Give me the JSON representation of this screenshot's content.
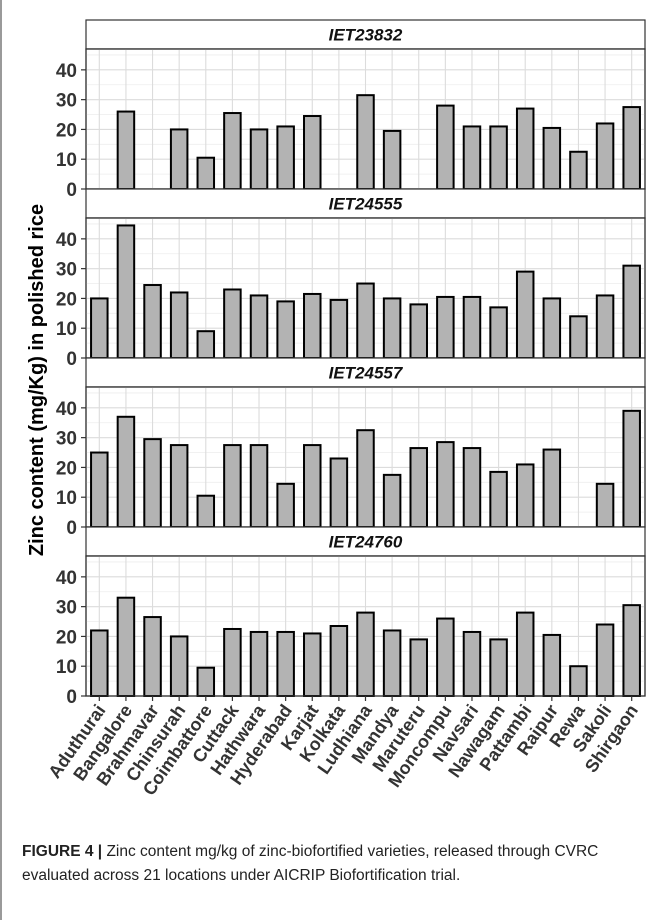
{
  "caption": {
    "label": "FIGURE 4 |",
    "text": " Zinc content mg/kg of zinc-biofortified varieties, released through CVRC evaluated across 21 locations under AICRIP Biofortification trial."
  },
  "chart_data": {
    "type": "bar",
    "facet": "panels stacked vertically, shared x axis",
    "ylabel": "Zinc content (mg/Kg) in polished rice",
    "xlabel": "",
    "ylim": [
      0,
      47
    ],
    "yticks": [
      0,
      10,
      20,
      30,
      40
    ],
    "grid": true,
    "legend": "none",
    "categories": [
      "Aduthurai",
      "Bangalore",
      "Brahmavar",
      "Chinsurah",
      "Coimbattore",
      "Cuttack",
      "Hathwara",
      "Hyderabad",
      "Karjat",
      "Kolkata",
      "Ludhiana",
      "Mandya",
      "Maruteru",
      "Moncompu",
      "Navsari",
      "Nawagam",
      "Pattambi",
      "Raipur",
      "Rewa",
      "Sakoli",
      "Shirgaon"
    ],
    "series": [
      {
        "name": "IET23832",
        "values": [
          null,
          26,
          null,
          20,
          10.5,
          25.5,
          20,
          21,
          24.5,
          null,
          31.5,
          19.5,
          null,
          28,
          21,
          21,
          27,
          20.5,
          12.5,
          22,
          27.5
        ]
      },
      {
        "name": "IET24555",
        "values": [
          20,
          44.5,
          24.5,
          22,
          9,
          23,
          21,
          19,
          21.5,
          19.5,
          25,
          20,
          18,
          20.5,
          20.5,
          17,
          29,
          20,
          14,
          21,
          31
        ]
      },
      {
        "name": "IET24557",
        "values": [
          25,
          37,
          29.5,
          27.5,
          10.5,
          27.5,
          27.5,
          14.5,
          27.5,
          23,
          32.5,
          17.5,
          26.5,
          28.5,
          26.5,
          18.5,
          21,
          26,
          null,
          14.5,
          39
        ]
      },
      {
        "name": "IET24760",
        "values": [
          22,
          33,
          26.5,
          20,
          9.5,
          22.5,
          21.5,
          21.5,
          21,
          23.5,
          28,
          22,
          19,
          26,
          21.5,
          19,
          28,
          20.5,
          10,
          24,
          30.5
        ]
      }
    ],
    "colors": {
      "bar_fill": "#b3b3b3",
      "bar_stroke": "#000000",
      "grid": "#dcdcdc",
      "strip_bg": "#ffffff"
    }
  }
}
